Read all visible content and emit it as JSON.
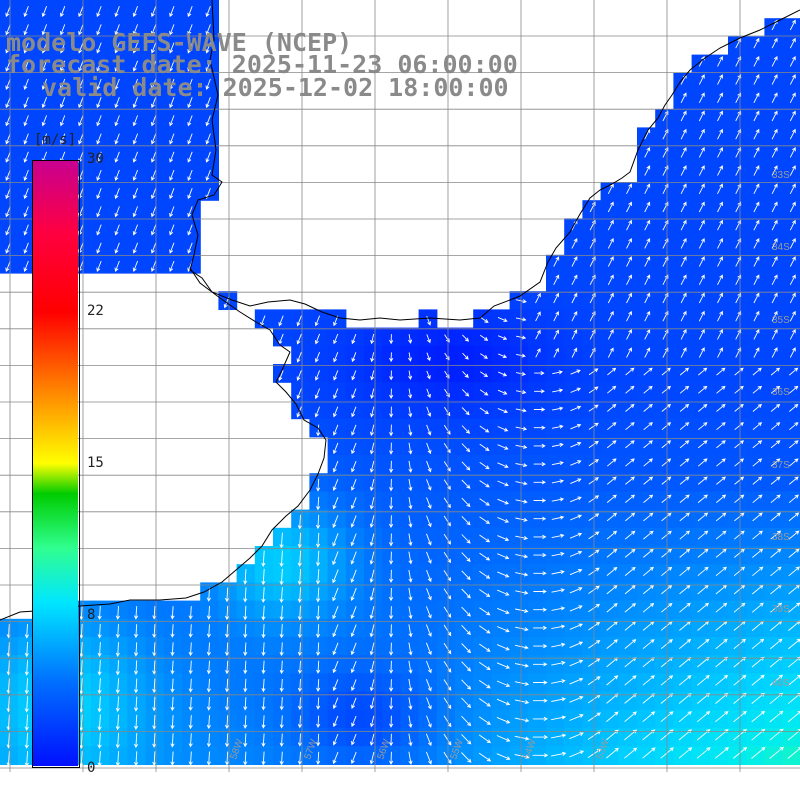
{
  "title": {
    "line1": "modelo GEFS-WAVE (NCEP)",
    "line2": "forecast date: 2025-11-23 06:00:00",
    "line3": "valid date: 2025-12-02 18:00:00"
  },
  "colorbar": {
    "unit": "[m/s]",
    "ticks": [
      "30",
      "22",
      "15",
      "8",
      "0"
    ],
    "tick_values": [
      30,
      22,
      15,
      8,
      0
    ],
    "min": 0,
    "max": 30
  },
  "map": {
    "lon_labels": [
      "58W",
      "57W",
      "56W",
      "55W",
      "54W",
      "53W"
    ],
    "lat_labels": [
      "33S",
      "34S",
      "35S",
      "36S",
      "37S",
      "38S",
      "39S",
      "40S"
    ],
    "colors": {
      "land": "#ffffff",
      "grid": "#888888",
      "coast": "#000000",
      "arrow": "#ffffff"
    }
  }
}
